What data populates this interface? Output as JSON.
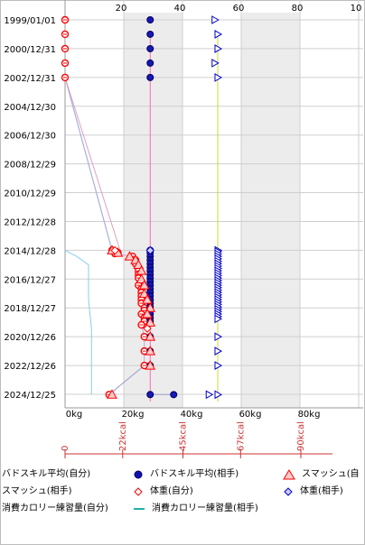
{
  "chart_data": {
    "type": "scatter",
    "title": "",
    "x_axis": {
      "unit": "kg",
      "range": [
        0,
        100
      ],
      "tick_values": [
        0,
        20,
        40,
        60,
        80,
        100
      ],
      "bottom_labels": [
        "0kg",
        "20kg",
        "40kg",
        "60kg",
        "80kg"
      ],
      "top_labels": [
        "20",
        "40",
        "60",
        "80",
        "10"
      ]
    },
    "kcal_axis": {
      "labels": [
        "0",
        "22kcal",
        "45kcal",
        "67kcal",
        "90kcal"
      ],
      "values": [
        0,
        22,
        45,
        67,
        90
      ]
    },
    "y_axis": {
      "type": "date",
      "range": [
        "1999/01/01",
        "2025/01/25"
      ],
      "tick_labels": [
        "1999/01/01",
        "2000/12/31",
        "2002/12/31",
        "2004/12/30",
        "2006/12/30",
        "2008/12/29",
        "2010/12/29",
        "2012/12/28",
        "2014/12/28",
        "2016/12/27",
        "2018/12/27",
        "2020/12/26",
        "2022/12/26",
        "2024/12/25"
      ]
    },
    "shaded_x_bands": [
      [
        20,
        40
      ],
      [
        60,
        80
      ]
    ],
    "series": [
      {
        "name": "バドスキル平均(自分)",
        "color": "#ff0000",
        "marker": "circle-open",
        "points": [
          [
            "1999/01/01",
            0
          ],
          [
            "2000/01/01",
            0
          ],
          [
            "2001/01/01",
            0
          ],
          [
            "2002/01/01",
            0
          ],
          [
            "2003/01/01",
            0
          ],
          [
            "2014/12/28",
            16
          ],
          [
            "2015/01/20",
            17
          ],
          [
            "2015/03/01",
            18
          ],
          [
            "2015/03/20",
            17
          ],
          [
            "2015/06/01",
            23
          ],
          [
            "2015/09/01",
            24
          ],
          [
            "2015/12/01",
            24
          ],
          [
            "2016/03/01",
            25
          ],
          [
            "2016/06/01",
            25
          ],
          [
            "2016/09/01",
            25
          ],
          [
            "2016/12/01",
            25
          ],
          [
            "2017/03/01",
            26
          ],
          [
            "2017/06/01",
            25
          ],
          [
            "2017/09/01",
            26
          ],
          [
            "2017/12/01",
            26
          ],
          [
            "2018/03/01",
            26
          ],
          [
            "2018/06/01",
            26
          ],
          [
            "2018/09/01",
            26
          ],
          [
            "2018/12/27",
            27
          ],
          [
            "2019/03/01",
            27
          ],
          [
            "2019/06/01",
            26
          ],
          [
            "2019/09/01",
            27
          ],
          [
            "2019/12/01",
            27
          ],
          [
            "2020/03/01",
            26
          ],
          [
            "2020/12/26",
            27
          ],
          [
            "2021/12/26",
            27
          ],
          [
            "2022/12/26",
            27
          ],
          [
            "2025/01/01",
            15
          ]
        ]
      },
      {
        "name": "バドスキル平均(相手)",
        "color": "#0000cc",
        "marker": "circle-filled",
        "points": [
          [
            "1999/01/01",
            29
          ],
          [
            "2000/01/01",
            29
          ],
          [
            "2001/01/01",
            29
          ],
          [
            "2002/01/01",
            29
          ],
          [
            "2003/01/01",
            29
          ],
          [
            "2014/12/28",
            29
          ],
          [
            "2015/03/01",
            29
          ],
          [
            "2015/06/01",
            29
          ],
          [
            "2015/09/01",
            29
          ],
          [
            "2015/12/01",
            29
          ],
          [
            "2016/03/01",
            29
          ],
          [
            "2016/06/01",
            29
          ],
          [
            "2016/09/01",
            29
          ],
          [
            "2016/12/01",
            29
          ],
          [
            "2017/03/01",
            29
          ],
          [
            "2017/06/01",
            29
          ],
          [
            "2017/09/01",
            29
          ],
          [
            "2017/12/01",
            29
          ],
          [
            "2018/03/01",
            29
          ],
          [
            "2018/06/01",
            29
          ],
          [
            "2018/09/01",
            29
          ],
          [
            "2018/12/01",
            29
          ],
          [
            "2019/03/01",
            29
          ],
          [
            "2019/06/01",
            29
          ],
          [
            "2019/09/01",
            29
          ],
          [
            "2019/12/01",
            29
          ],
          [
            "2020/12/26",
            29
          ],
          [
            "2021/12/26",
            29
          ],
          [
            "2022/12/26",
            29
          ],
          [
            "2025/01/01",
            29
          ],
          [
            "2025/01/02",
            37
          ]
        ]
      },
      {
        "name": "スマッシュ(自分)",
        "color": "#ff0000",
        "marker": "triangle-up-open",
        "points": [
          [
            "2014/12/28",
            16
          ],
          [
            "2015/03/01",
            18
          ],
          [
            "2015/06/01",
            22
          ],
          [
            "2015/09/01",
            24
          ],
          [
            "2016/01/01",
            25
          ],
          [
            "2016/06/01",
            26
          ],
          [
            "2017/01/01",
            26
          ],
          [
            "2017/06/01",
            27
          ],
          [
            "2018/01/01",
            27
          ],
          [
            "2018/06/01",
            28
          ],
          [
            "2018/12/27",
            29
          ],
          [
            "2019/06/01",
            28
          ],
          [
            "2020/01/01",
            29
          ],
          [
            "2020/12/26",
            29
          ],
          [
            "2021/12/26",
            29
          ],
          [
            "2022/12/26",
            29
          ],
          [
            "2025/01/01",
            16
          ]
        ]
      },
      {
        "name": "スマッシュ(相手)",
        "color": "#0000cc",
        "marker": "triangle-right-open",
        "points": [
          [
            "1999/01/01",
            51
          ],
          [
            "2000/01/01",
            52
          ],
          [
            "2001/01/01",
            52
          ],
          [
            "2002/01/01",
            51
          ],
          [
            "2003/01/01",
            52
          ],
          [
            "2014/12/28",
            52
          ],
          [
            "2015/02/01",
            52
          ],
          [
            "2015/04/01",
            52
          ],
          [
            "2015/06/01",
            52
          ],
          [
            "2015/08/01",
            52
          ],
          [
            "2015/10/01",
            52
          ],
          [
            "2015/12/01",
            52
          ],
          [
            "2016/02/01",
            52
          ],
          [
            "2016/04/01",
            52
          ],
          [
            "2016/06/01",
            52
          ],
          [
            "2016/08/01",
            52
          ],
          [
            "2016/10/01",
            52
          ],
          [
            "2016/12/01",
            52
          ],
          [
            "2017/02/01",
            52
          ],
          [
            "2017/04/01",
            52
          ],
          [
            "2017/06/01",
            52
          ],
          [
            "2017/08/01",
            52
          ],
          [
            "2017/10/01",
            52
          ],
          [
            "2017/12/01",
            52
          ],
          [
            "2018/02/01",
            52
          ],
          [
            "2018/04/01",
            52
          ],
          [
            "2018/06/01",
            52
          ],
          [
            "2018/08/01",
            52
          ],
          [
            "2018/10/01",
            52
          ],
          [
            "2018/12/01",
            52
          ],
          [
            "2019/02/01",
            52
          ],
          [
            "2019/04/01",
            52
          ],
          [
            "2019/06/01",
            52
          ],
          [
            "2019/08/01",
            52
          ],
          [
            "2019/10/01",
            52
          ],
          [
            "2020/12/26",
            52
          ],
          [
            "2021/12/26",
            52
          ],
          [
            "2022/12/26",
            52
          ],
          [
            "2025/01/01",
            49
          ],
          [
            "2025/01/02",
            52
          ]
        ]
      },
      {
        "name": "体重(自分)",
        "color": "#ff0000",
        "marker": "diamond-open",
        "points": [
          [
            "2015/01/01",
            17
          ],
          [
            "2020/06/01",
            28
          ]
        ]
      },
      {
        "name": "体重(相手)",
        "color": "#0000cc",
        "marker": "diamond-open",
        "points": [
          [
            "2015/01/01",
            29
          ]
        ]
      },
      {
        "name": "消費カロリー練習量(自分)",
        "color": "#87ceeb",
        "marker": "line",
        "points": [
          [
            "2014/12/28",
            0
          ],
          [
            "2015/06/01",
            4
          ],
          [
            "2016/01/01",
            8
          ],
          [
            "2017/01/01",
            8
          ],
          [
            "2018/06/01",
            8
          ],
          [
            "2020/06/01",
            9
          ],
          [
            "2022/06/01",
            9
          ],
          [
            "2024/12/25",
            9
          ]
        ]
      },
      {
        "name": "消費カロリー練習量(相手)",
        "color": "#20b2aa",
        "marker": "line",
        "points": []
      }
    ],
    "vertical_reference_lines": [
      {
        "x": 29,
        "color": "#ff69b4"
      },
      {
        "x": 52,
        "color": "#c8dc32"
      }
    ]
  },
  "legend": [
    {
      "label": "バドスキル平均(自分)",
      "marker": "circle-open-red"
    },
    {
      "label": "バドスキル平均(相手)",
      "marker": "circle-filled-blue"
    },
    {
      "label": "スマッシュ(自",
      "marker": "triangle-up-red"
    },
    {
      "label": "スマッシュ(相手)",
      "marker": "triangle-right-blue"
    },
    {
      "label": "体重(自分)",
      "marker": "diamond-red"
    },
    {
      "label": "体重(相手)",
      "marker": "diamond-blue"
    },
    {
      "label": "消費カロリー練習量(自分)",
      "marker": "line-skyblue"
    },
    {
      "label": "消費カロリー練習量(相手)",
      "marker": "line-teal"
    }
  ]
}
